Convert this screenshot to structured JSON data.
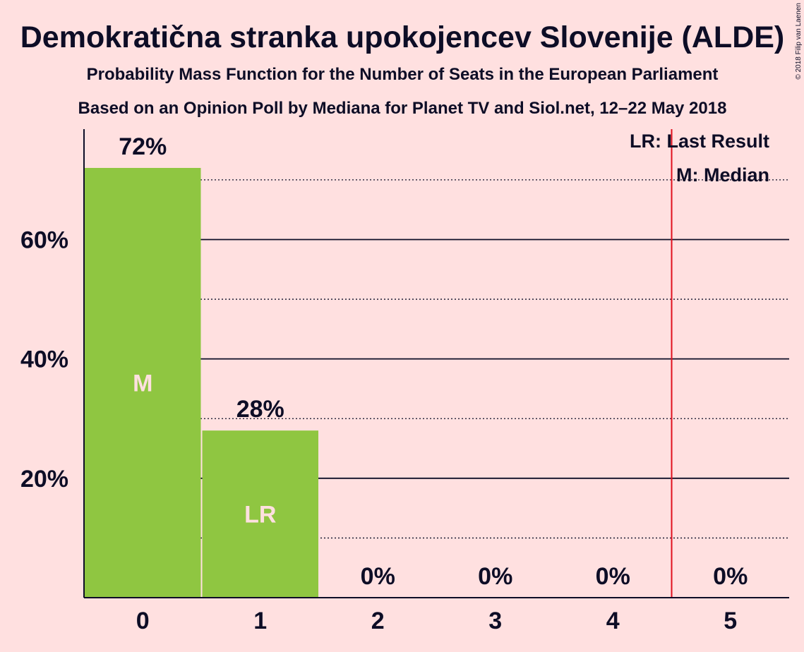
{
  "chart_data": {
    "type": "bar",
    "title": "Demokratična stranka upokojencev Slovenije (ALDE)",
    "subtitle1": "Probability Mass Function for the Number of Seats in the European Parliament",
    "subtitle2": "Based on an Opinion Poll by Mediana for Planet TV and Siol.net, 12–22 May 2018",
    "categories": [
      "0",
      "1",
      "2",
      "3",
      "4",
      "5"
    ],
    "values": [
      72,
      28,
      0,
      0,
      0,
      0
    ],
    "value_labels": [
      "72%",
      "28%",
      "0%",
      "0%",
      "0%",
      "0%"
    ],
    "in_bar_labels": [
      "M",
      "LR",
      "",
      "",
      "",
      ""
    ],
    "yticks": [
      {
        "value": 20,
        "label": "20%"
      },
      {
        "value": 40,
        "label": "40%"
      },
      {
        "value": 60,
        "label": "60%"
      }
    ],
    "minor_gridlines": [
      10,
      30,
      50,
      70
    ],
    "ylim": [
      0,
      78.5
    ],
    "last_result_line_after_seat": 4.5,
    "legend": [
      "LR: Last Result",
      "M: Median"
    ],
    "copyright": "© 2018 Filip van Laenen",
    "colors": {
      "bar": "#8fc641",
      "background": "#ffe0e0",
      "text": "#0d0d26",
      "last_result_line": "#e0101e"
    }
  }
}
